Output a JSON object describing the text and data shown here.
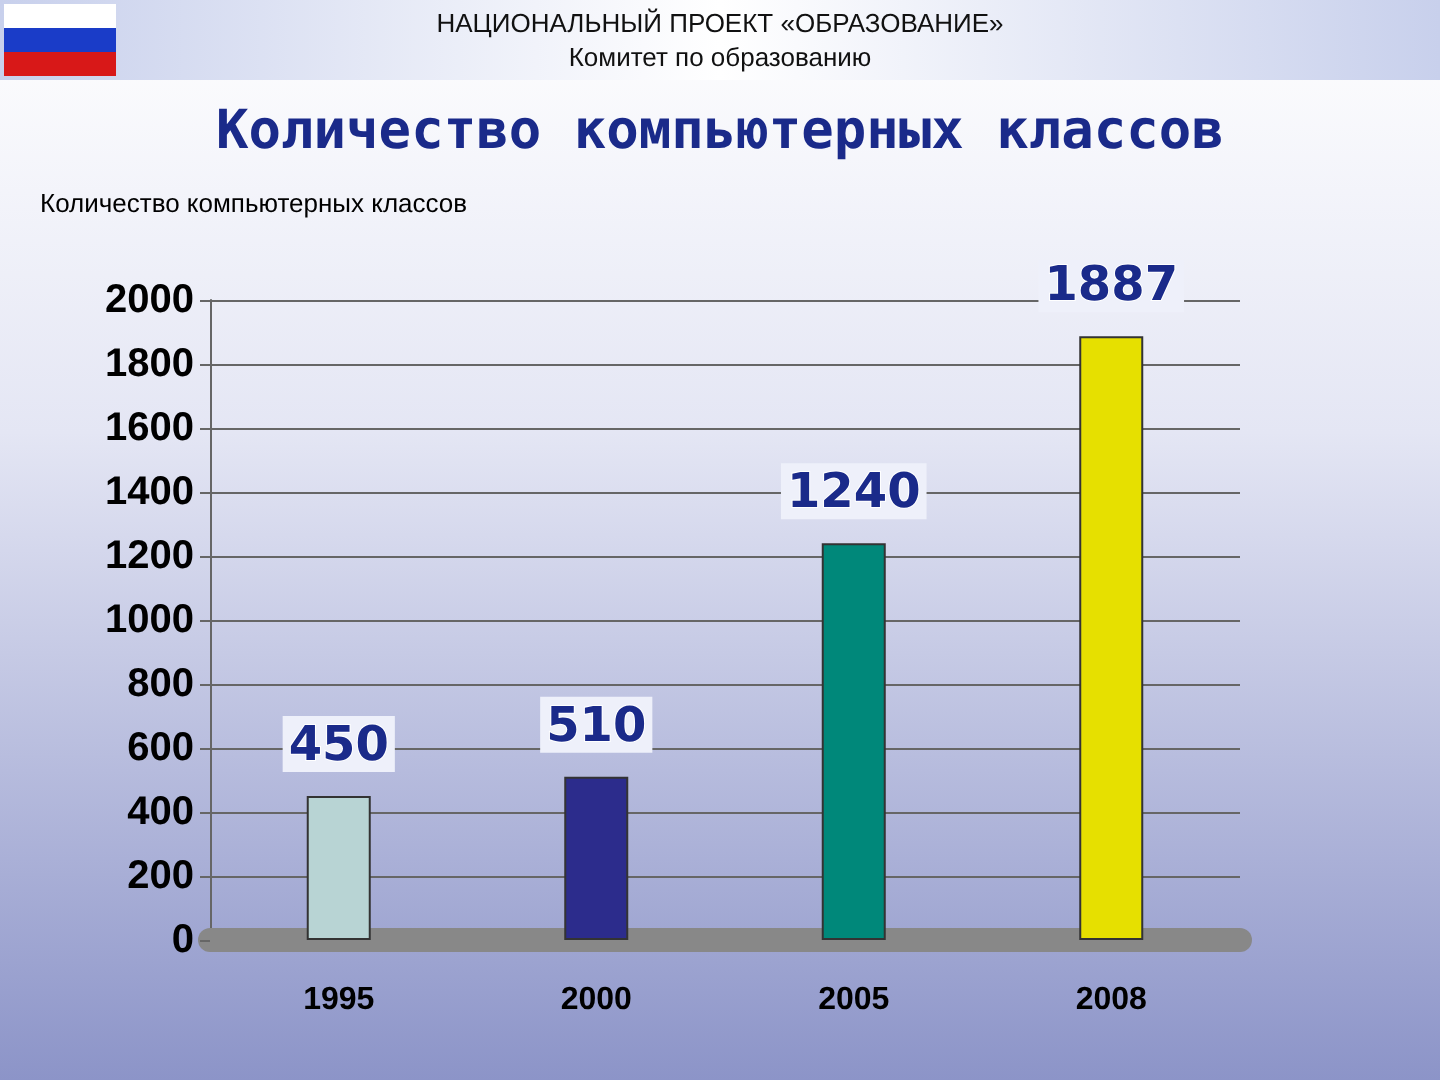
{
  "chart_data": {
    "type": "bar",
    "title": "Количество компьютерных классов",
    "ylabel": "Количество компьютерных классов",
    "annotations": [
      "НАЦИОНАЛЬНЫЙ ПРОЕКТ «ОБРАЗОВАНИЕ»",
      "Комитет по образованию"
    ],
    "categories": [
      "1995",
      "2000",
      "2005",
      "2008"
    ],
    "values": [
      450,
      510,
      1240,
      1887
    ],
    "colors": [
      "#b8d4d4",
      "#2c2c8c",
      "#00887a",
      "#e6e000"
    ],
    "ylim": [
      0,
      2000
    ],
    "yticks": [
      0,
      200,
      400,
      600,
      800,
      1000,
      1200,
      1400,
      1600,
      1800,
      2000
    ],
    "grid": "y",
    "data_labels": true
  }
}
